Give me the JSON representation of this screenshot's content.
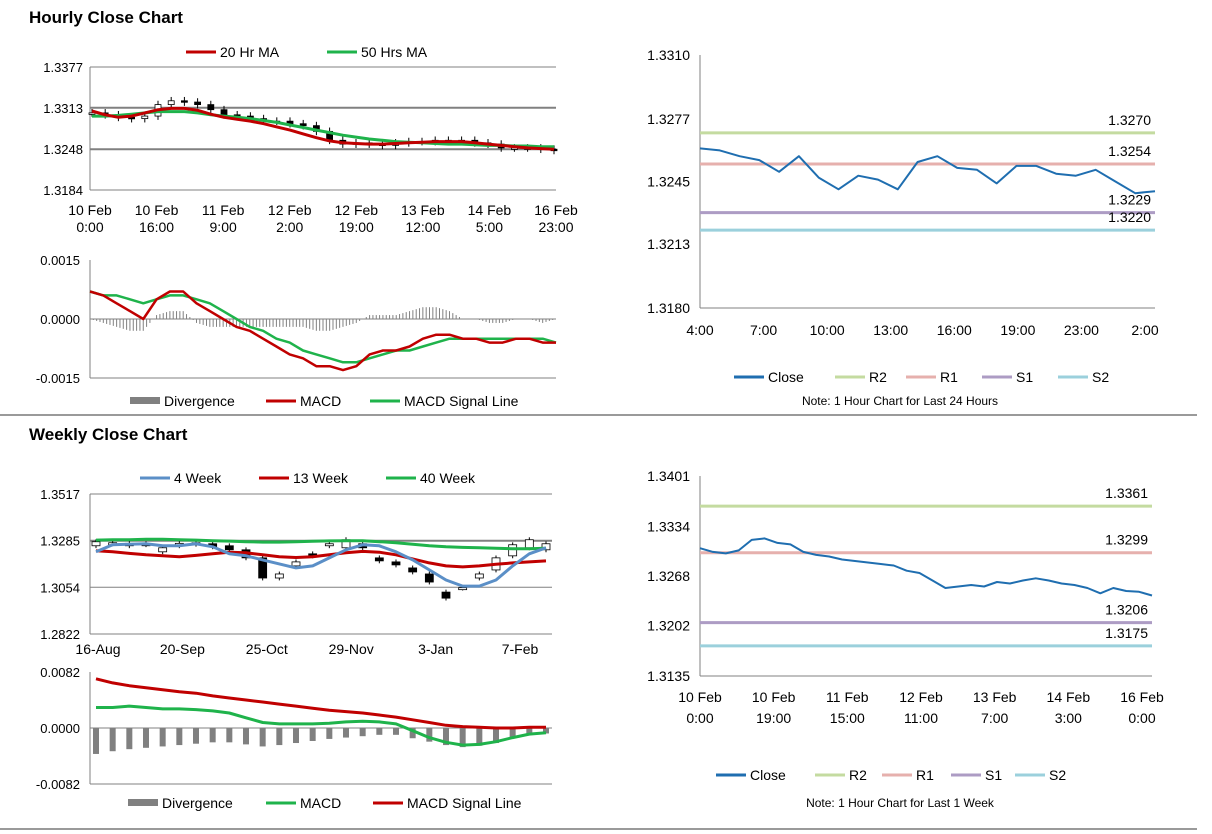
{
  "sections": {
    "hourly_title": "Hourly Close Chart",
    "weekly_title": "Weekly Close Chart"
  },
  "colors": {
    "ma_red": "#c00000",
    "ma_green": "#1fb34b",
    "ma_blue": "#5b8fc7",
    "close_blue": "#1f6eb0",
    "r2": "#c4dba0",
    "r1": "#e6b0ad",
    "s1": "#ad9cc4",
    "s2": "#9bd0dc",
    "divergence": "#808080",
    "grid": "#808080"
  },
  "chart_data": [
    {
      "id": "hourly_candles",
      "type": "candlestick",
      "legend": [
        "20 Hr MA",
        "50 Hrs MA"
      ],
      "yticks": [
        "1.3377",
        "1.3313",
        "1.3248",
        "1.3184"
      ],
      "ylim": [
        1.3184,
        1.3377
      ],
      "xticks": [
        [
          "10 Feb",
          "0:00"
        ],
        [
          "10 Feb",
          "16:00"
        ],
        [
          "11 Feb",
          "9:00"
        ],
        [
          "12 Feb",
          "2:00"
        ],
        [
          "12 Feb",
          "19:00"
        ],
        [
          "13 Feb",
          "12:00"
        ],
        [
          "14 Feb",
          "5:00"
        ],
        [
          "16 Feb",
          "23:00"
        ]
      ],
      "close": [
        1.3305,
        1.3302,
        1.3298,
        1.3296,
        1.33,
        1.3318,
        1.3324,
        1.3322,
        1.3318,
        1.331,
        1.3302,
        1.33,
        1.3296,
        1.3292,
        1.3292,
        1.3288,
        1.3285,
        1.3276,
        1.3262,
        1.3256,
        1.3258,
        1.3256,
        1.3254,
        1.3258,
        1.326,
        1.326,
        1.3262,
        1.3262,
        1.3262,
        1.3258,
        1.3256,
        1.325,
        1.325,
        1.325,
        1.3248,
        1.3246
      ],
      "ma20": [
        1.3308,
        1.3302,
        1.3298,
        1.33,
        1.3305,
        1.331,
        1.3312,
        1.3312,
        1.3309,
        1.3303,
        1.3298,
        1.3295,
        1.3292,
        1.3288,
        1.3283,
        1.3278,
        1.3272,
        1.3266,
        1.3261,
        1.3258,
        1.3257,
        1.3256,
        1.3256,
        1.3257,
        1.3258,
        1.3259,
        1.326,
        1.326,
        1.326,
        1.3258,
        1.3256,
        1.3254,
        1.3252,
        1.325,
        1.3249,
        1.3248
      ],
      "ma50": [
        1.33,
        1.33,
        1.3301,
        1.3303,
        1.3305,
        1.3307,
        1.3307,
        1.3307,
        1.3305,
        1.3302,
        1.33,
        1.3298,
        1.3296,
        1.3293,
        1.329,
        1.3286,
        1.3282,
        1.3278,
        1.3274,
        1.327,
        1.3267,
        1.3264,
        1.3262,
        1.326,
        1.3259,
        1.3258,
        1.3257,
        1.3256,
        1.3256,
        1.3255,
        1.3254,
        1.3254,
        1.3253,
        1.3253,
        1.3252,
        1.3252
      ]
    },
    {
      "id": "hourly_macd",
      "type": "line",
      "legend": [
        "Divergence",
        "MACD",
        "MACD Signal Line"
      ],
      "yticks": [
        "0.0015",
        "0.0000",
        "-0.0015"
      ],
      "ylim": [
        -0.0015,
        0.0015
      ],
      "macd": [
        0.0007,
        0.0006,
        0.0004,
        0.0002,
        0.0,
        0.0005,
        0.0007,
        0.0007,
        0.0004,
        0.0002,
        0.0,
        -0.0002,
        -0.0003,
        -0.0005,
        -0.0007,
        -0.0009,
        -0.001,
        -0.0012,
        -0.0012,
        -0.0013,
        -0.0012,
        -0.0009,
        -0.0008,
        -0.0008,
        -0.0007,
        -0.0005,
        -0.0004,
        -0.0004,
        -0.0005,
        -0.0005,
        -0.0006,
        -0.0006,
        -0.0005,
        -0.0005,
        -0.0006,
        -0.0006
      ],
      "signal": [
        0.0007,
        0.0006,
        0.0006,
        0.0005,
        0.0004,
        0.0005,
        0.0006,
        0.0006,
        0.0005,
        0.0004,
        0.0002,
        0.0,
        -0.0002,
        -0.0003,
        -0.0005,
        -0.0006,
        -0.0008,
        -0.0009,
        -0.001,
        -0.0011,
        -0.0011,
        -0.001,
        -0.0009,
        -0.0008,
        -0.0008,
        -0.0007,
        -0.0006,
        -0.0005,
        -0.0005,
        -0.0005,
        -0.0005,
        -0.0005,
        -0.0005,
        -0.0005,
        -0.0005,
        -0.0006
      ],
      "divergence": [
        0.0,
        -0.0001,
        -0.0002,
        -0.0003,
        -0.0003,
        0.0001,
        0.0002,
        0.0002,
        -0.0001,
        -0.0002,
        -0.0002,
        -0.0002,
        -0.0002,
        -0.0002,
        -0.0002,
        -0.0002,
        -0.0002,
        -0.0003,
        -0.0003,
        -0.0002,
        -0.0001,
        0.0001,
        0.0001,
        0.0001,
        0.0002,
        0.0003,
        0.0003,
        0.0002,
        0.0,
        0.0,
        -0.0001,
        -0.0001,
        0.0,
        0.0,
        -0.0001,
        0.0
      ]
    },
    {
      "id": "hourly_close_24h",
      "type": "line",
      "yticks": [
        "1.3310",
        "1.3277",
        "1.3245",
        "1.3213",
        "1.3180"
      ],
      "ylim": [
        1.318,
        1.331
      ],
      "xticks": [
        "4:00",
        "7:00",
        "10:00",
        "13:00",
        "16:00",
        "19:00",
        "23:00",
        "2:00"
      ],
      "close": [
        1.3262,
        1.3261,
        1.3258,
        1.3256,
        1.325,
        1.3258,
        1.3247,
        1.3241,
        1.3248,
        1.3246,
        1.3241,
        1.3255,
        1.3258,
        1.3252,
        1.3251,
        1.3244,
        1.3253,
        1.3253,
        1.3249,
        1.3248,
        1.3251,
        1.3245,
        1.3239,
        1.324
      ],
      "levels": [
        {
          "name": "R2",
          "value": 1.327,
          "label": "1.3270"
        },
        {
          "name": "R1",
          "value": 1.3254,
          "label": "1.3254"
        },
        {
          "name": "S1",
          "value": 1.3229,
          "label": "1.3229"
        },
        {
          "name": "S2",
          "value": 1.322,
          "label": "1.3220"
        }
      ],
      "legend": [
        "Close",
        "R2",
        "R1",
        "S1",
        "S2"
      ],
      "note": "Note: 1 Hour Chart for Last 24 Hours"
    },
    {
      "id": "weekly_candles",
      "type": "candlestick",
      "legend": [
        "4 Week",
        "13 Week",
        "40 Week"
      ],
      "yticks": [
        "1.3517",
        "1.3285",
        "1.3054",
        "1.2822"
      ],
      "ylim": [
        1.2822,
        1.3517
      ],
      "xticks": [
        "16-Aug",
        "20-Sep",
        "25-Oct",
        "29-Nov",
        "3-Jan",
        "7-Feb"
      ],
      "open": [
        1.326,
        1.327,
        1.3272,
        1.3265,
        1.323,
        1.326,
        1.3275,
        1.327,
        1.326,
        1.324,
        1.32,
        1.31,
        1.316,
        1.322,
        1.326,
        1.325,
        1.327,
        1.32,
        1.318,
        1.315,
        1.312,
        1.303,
        1.305,
        1.31,
        1.314,
        1.321,
        1.325,
        1.324
      ],
      "close": [
        1.328,
        1.3275,
        1.326,
        1.327,
        1.325,
        1.3272,
        1.3268,
        1.3255,
        1.324,
        1.32,
        1.31,
        1.312,
        1.318,
        1.321,
        1.327,
        1.329,
        1.325,
        1.3185,
        1.3165,
        1.313,
        1.308,
        1.3,
        1.3052,
        1.312,
        1.32,
        1.3265,
        1.329,
        1.327
      ],
      "ma4": [
        1.323,
        1.3265,
        1.3268,
        1.327,
        1.326,
        1.326,
        1.327,
        1.3255,
        1.322,
        1.321,
        1.319,
        1.317,
        1.315,
        1.316,
        1.32,
        1.324,
        1.3265,
        1.326,
        1.323,
        1.319,
        1.314,
        1.309,
        1.306,
        1.306,
        1.309,
        1.316,
        1.322,
        1.325
      ],
      "ma13": [
        1.3235,
        1.323,
        1.3222,
        1.3215,
        1.321,
        1.3205,
        1.3212,
        1.322,
        1.3228,
        1.3225,
        1.3215,
        1.3205,
        1.3202,
        1.3205,
        1.3215,
        1.3225,
        1.3232,
        1.3228,
        1.3215,
        1.3195,
        1.3175,
        1.316,
        1.3155,
        1.316,
        1.3168,
        1.3175,
        1.318,
        1.3185
      ],
      "ma40": [
        1.3288,
        1.329,
        1.329,
        1.3292,
        1.3292,
        1.329,
        1.3288,
        1.3285,
        1.3283,
        1.328,
        1.3278,
        1.3278,
        1.328,
        1.3282,
        1.3284,
        1.3285,
        1.3285,
        1.328,
        1.3275,
        1.3268,
        1.326,
        1.3255,
        1.3252,
        1.325,
        1.3248,
        1.3245,
        1.3245,
        1.3248
      ]
    },
    {
      "id": "weekly_macd",
      "type": "line",
      "legend": [
        "Divergence",
        "MACD",
        "MACD Signal Line"
      ],
      "yticks": [
        "0.0082",
        "0.0000",
        "-0.0082"
      ],
      "ylim": [
        -0.0082,
        0.0082
      ],
      "macd": [
        0.003,
        0.003,
        0.0032,
        0.003,
        0.0028,
        0.0028,
        0.0027,
        0.0025,
        0.0022,
        0.0015,
        0.0008,
        0.0006,
        0.0006,
        0.0006,
        0.0007,
        0.0009,
        0.001,
        0.0009,
        0.0006,
        -0.0004,
        -0.0014,
        -0.0021,
        -0.0025,
        -0.0024,
        -0.002,
        -0.0014,
        -0.0009,
        -0.0007
      ],
      "signal": [
        0.0072,
        0.0066,
        0.0062,
        0.0059,
        0.0056,
        0.0053,
        0.0051,
        0.0047,
        0.0044,
        0.0041,
        0.0038,
        0.0035,
        0.0032,
        0.0029,
        0.0026,
        0.0024,
        0.0022,
        0.0019,
        0.0016,
        0.0012,
        0.0008,
        0.0004,
        0.0002,
        0.0001,
        0.0,
        0.0,
        0.0001,
        0.0001
      ],
      "divergence": [
        -0.0038,
        -0.0034,
        -0.0031,
        -0.0029,
        -0.0027,
        -0.0025,
        -0.0023,
        -0.0021,
        -0.0021,
        -0.0024,
        -0.0027,
        -0.0025,
        -0.0022,
        -0.0019,
        -0.0016,
        -0.0014,
        -0.0012,
        -0.001,
        -0.001,
        -0.0015,
        -0.002,
        -0.0025,
        -0.0028,
        -0.0026,
        -0.0022,
        -0.0015,
        -0.001,
        -0.0008
      ]
    },
    {
      "id": "weekly_close_1w",
      "type": "line",
      "yticks": [
        "1.3401",
        "1.3334",
        "1.3268",
        "1.3202",
        "1.3135"
      ],
      "ylim": [
        1.3135,
        1.3401
      ],
      "xticks": [
        [
          "10 Feb",
          "0:00"
        ],
        [
          "10 Feb",
          "19:00"
        ],
        [
          "11 Feb",
          "15:00"
        ],
        [
          "12 Feb",
          "11:00"
        ],
        [
          "13 Feb",
          "7:00"
        ],
        [
          "14 Feb",
          "3:00"
        ],
        [
          "16 Feb",
          "0:00"
        ]
      ],
      "close": [
        1.3305,
        1.33,
        1.3298,
        1.3302,
        1.3316,
        1.3318,
        1.3312,
        1.331,
        1.33,
        1.3296,
        1.3294,
        1.329,
        1.3288,
        1.3286,
        1.3284,
        1.3282,
        1.3275,
        1.3272,
        1.3262,
        1.3252,
        1.3254,
        1.3256,
        1.3254,
        1.326,
        1.3258,
        1.3262,
        1.3265,
        1.3262,
        1.3258,
        1.3256,
        1.3252,
        1.3245,
        1.3252,
        1.3248,
        1.3247,
        1.3242
      ],
      "levels": [
        {
          "name": "R2",
          "value": 1.3361,
          "label": "1.3361"
        },
        {
          "name": "R1",
          "value": 1.3299,
          "label": "1.3299"
        },
        {
          "name": "S1",
          "value": 1.3206,
          "label": "1.3206"
        },
        {
          "name": "S2",
          "value": 1.3175,
          "label": "1.3175"
        }
      ],
      "legend": [
        "Close",
        "R2",
        "R1",
        "S1",
        "S2"
      ],
      "note": "Note: 1 Hour Chart for  Last 1 Week"
    }
  ]
}
